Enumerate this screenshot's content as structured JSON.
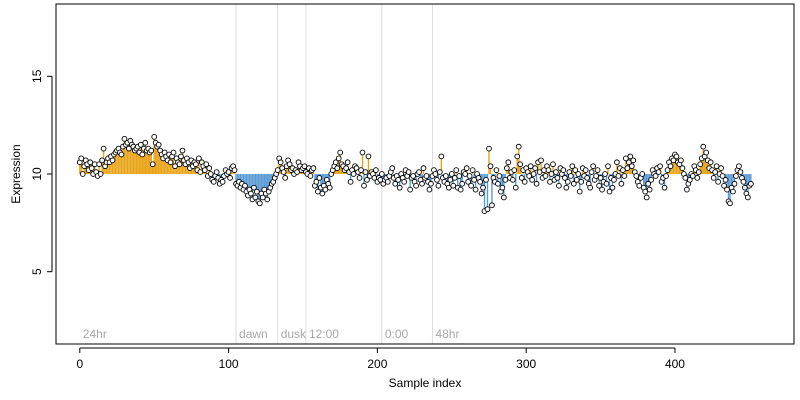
{
  "chart_data": {
    "type": "scatter",
    "title": "",
    "xlabel": "Sample index",
    "ylabel": "Expression",
    "xlim": [
      -16,
      480
    ],
    "ylim": [
      1.3,
      18.7
    ],
    "x_ticks": [
      0,
      100,
      200,
      300,
      400
    ],
    "y_ticks": [
      5,
      10,
      15
    ],
    "grid": false,
    "legend": "none",
    "baseline": 10,
    "colors": {
      "above": "#e8a317",
      "below": "#5b9bd5",
      "point_fill": "#ffffff",
      "point_stroke": "#000000",
      "marker_line": "#dddddd"
    },
    "annotations": [
      {
        "x": 0,
        "label": "24hr"
      },
      {
        "x": 105,
        "label": "dawn"
      },
      {
        "x": 133,
        "label": "dusk"
      },
      {
        "x": 152,
        "label": "12:00"
      },
      {
        "x": 203,
        "label": "0:00"
      },
      {
        "x": 237,
        "label": "48hr"
      }
    ],
    "series": [
      {
        "values": [
          10.6,
          10.8,
          10.0,
          10.4,
          10.7,
          10.5,
          10.2,
          10.6,
          10.3,
          10.0,
          10.5,
          10.1,
          9.9,
          10.5,
          10.0,
          10.7,
          11.3,
          10.4,
          10.6,
          10.8,
          10.6,
          10.9,
          10.7,
          11.0,
          11.1,
          11.2,
          11.3,
          11.1,
          11.0,
          11.4,
          11.8,
          11.5,
          11.6,
          11.3,
          11.7,
          11.5,
          11.4,
          11.2,
          11.3,
          11.4,
          11.1,
          11.5,
          11.0,
          11.3,
          11.6,
          11.2,
          11.3,
          11.1,
          11.2,
          10.5,
          11.9,
          11.6,
          11.4,
          11.5,
          11.2,
          11.0,
          10.8,
          11.1,
          10.9,
          10.7,
          11.0,
          10.6,
          10.9,
          11.1,
          10.4,
          10.8,
          10.6,
          10.5,
          10.9,
          11.2,
          10.7,
          10.5,
          10.8,
          10.6,
          10.3,
          10.7,
          10.4,
          10.6,
          10.5,
          10.2,
          10.8,
          10.1,
          10.6,
          10.4,
          10.2,
          10.5,
          9.9,
          10.3,
          10.0,
          9.7,
          9.6,
          9.9,
          10.1,
          9.8,
          9.5,
          9.7,
          9.6,
          9.9,
          10.2,
          10.0,
          10.1,
          9.8,
          10.3,
          10.4,
          10.2,
          9.5,
          9.4,
          9.6,
          9.3,
          9.5,
          9.2,
          9.4,
          9.1,
          8.9,
          9.2,
          9.0,
          8.7,
          9.3,
          8.8,
          9.1,
          8.6,
          8.5,
          9.0,
          8.8,
          9.2,
          9.0,
          8.7,
          9.1,
          9.3,
          9.5,
          9.6,
          9.8,
          10.0,
          10.2,
          10.8,
          10.6,
          10.3,
          10.1,
          9.8,
          10.4,
          10.7,
          10.5,
          10.2,
          10.3,
          10.0,
          10.2,
          10.1,
          10.6,
          10.4,
          10.2,
          10.3,
          10.4,
          10.1,
          10.0,
          10.3,
          9.9,
          10.2,
          10.3,
          9.4,
          9.6,
          9.1,
          9.8,
          9.3,
          9.0,
          9.4,
          9.2,
          9.7,
          9.5,
          9.3,
          10.0,
          10.2,
          10.4,
          10.6,
          10.3,
          10.8,
          11.1,
          10.5,
          10.4,
          10.2,
          10.3,
          10.6,
          10.1,
          9.6,
          10.2,
          10.0,
          10.4,
          10.3,
          10.1,
          9.8,
          10.2,
          11.1,
          9.4,
          10.1,
          9.7,
          10.9,
          9.9,
          10.1,
          10.0,
          9.8,
          10.2,
          9.6,
          9.8,
          9.7,
          10.0,
          9.5,
          9.7,
          9.8,
          9.6,
          9.9,
          10.1,
          10.3,
          9.8,
          9.5,
          9.9,
          9.7,
          9.3,
          10.0,
          9.8,
          9.6,
          10.2,
          9.9,
          10.1,
          9.2,
          9.8,
          9.9,
          9.6,
          9.4,
          10.0,
          10.1,
          9.7,
          9.5,
          10.3,
          9.8,
          9.9,
          9.6,
          9.2,
          9.5,
          9.9,
          10.2,
          10.0,
          9.7,
          9.4,
          10.1,
          10.9,
          9.8,
          9.6,
          9.9,
          9.5,
          9.3,
          9.7,
          10.0,
          9.4,
          9.8,
          10.2,
          9.3,
          9.9,
          9.2,
          9.5,
          10.1,
          10.0,
          10.3,
          9.6,
          9.9,
          9.4,
          10.2,
          9.7,
          9.2,
          10.0,
          9.8,
          9.6,
          9.0,
          9.3,
          8.1,
          9.7,
          8.2,
          11.3,
          10.4,
          8.4,
          9.8,
          9.6,
          10.2,
          9.5,
          9.9,
          9.1,
          9.3,
          8.8,
          9.7,
          10.3,
          10.6,
          9.8,
          10.1,
          9.7,
          10.2,
          9.3,
          10.9,
          11.4,
          10.5,
          9.8,
          10.2,
          9.6,
          10.3,
          10.1,
          9.9,
          10.4,
          9.7,
          10.0,
          10.3,
          9.5,
          10.6,
          10.1,
          10.7,
          9.8,
          10.2,
          9.9,
          10.4,
          10.2,
          9.6,
          10.0,
          10.5,
          9.7,
          10.1,
          9.8,
          9.4,
          10.3,
          10.0,
          10.2,
          9.8,
          9.3,
          9.6,
          10.1,
          9.9,
          10.4,
          9.5,
          10.2,
          9.7,
          10.0,
          9.1,
          9.6,
          10.3,
          9.9,
          10.2,
          9.8,
          9.5,
          9.3,
          10.1,
          10.4,
          9.7,
          9.9,
          10.2,
          9.4,
          9.8,
          9.2,
          9.6,
          10.0,
          9.5,
          10.4,
          9.1,
          9.8,
          9.3,
          9.7,
          10.0,
          10.6,
          9.9,
          10.3,
          9.5,
          10.2,
          9.9,
          10.8,
          10.3,
          10.6,
          10.9,
          10.4,
          10.7,
          10.1,
          9.9,
          9.6,
          9.4,
          9.8,
          10.0,
          9.3,
          9.1,
          8.8,
          9.5,
          9.2,
          9.7,
          10.2,
          10.0,
          9.9,
          10.3,
          10.1,
          10.4,
          9.6,
          9.8,
          9.3,
          9.9,
          10.2,
          10.6,
          10.4,
          10.8,
          10.7,
          11.0,
          10.9,
          10.6,
          10.5,
          10.7,
          10.3,
          10.0,
          9.8,
          9.2,
          9.5,
          9.7,
          10.0,
          9.9,
          10.4,
          10.2,
          9.8,
          10.1,
          10.5,
          10.8,
          11.4,
          10.9,
          11.1,
          10.7,
          10.3,
          10.6,
          10.2,
          9.8,
          10.1,
          10.4,
          9.6,
          10.0,
          10.3,
          9.9,
          9.4,
          9.7,
          9.2,
          8.6,
          8.5,
          9.3,
          9.1,
          9.5,
          9.9,
          10.2,
          10.4,
          10.1,
          9.8,
          9.6,
          9.3,
          9.0,
          8.8,
          9.4,
          9.5
        ]
      }
    ]
  }
}
